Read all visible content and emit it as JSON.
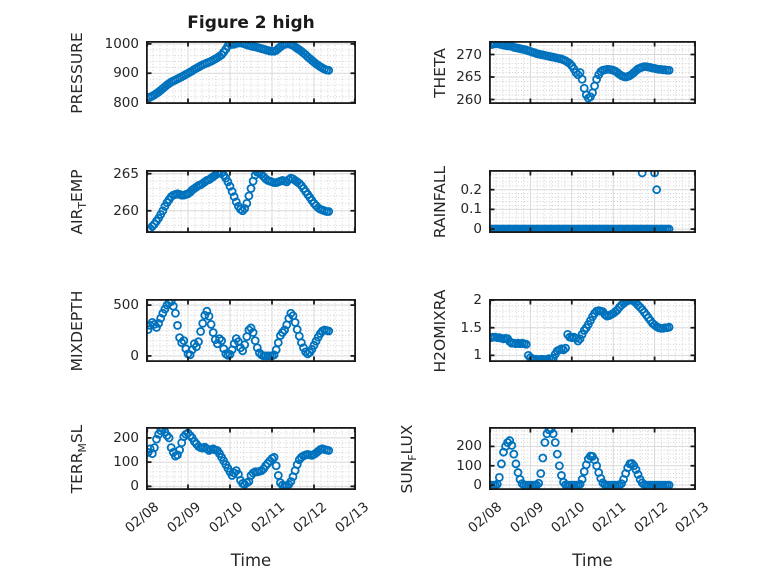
{
  "chart_data": {
    "type": "scatter",
    "title": "Figure 2 high",
    "xlabel": "Time",
    "x_tick_labels": [
      "02/08",
      "02/09",
      "02/10",
      "02/11",
      "02/12",
      "02/13"
    ],
    "xlim": [
      0,
      5
    ],
    "x_unit": "days since 02/08",
    "marker": "o",
    "marker_color": "#0072BD",
    "grid": "major solid + dotted minor",
    "subplots": [
      {
        "name": "PRESSURE",
        "slot": [
          0,
          0
        ],
        "ylabel_pre": "PRESSURE",
        "ylabel_sub": "",
        "ylabel_post": "",
        "ylim": [
          795,
          1010
        ],
        "yticks": [
          800,
          900,
          1000
        ],
        "ytick_labels": [
          "800",
          "900",
          "1000"
        ],
        "y_minor_step": 20,
        "t0": 0.05,
        "dt": 0.05,
        "values": [
          818,
          819,
          822,
          826,
          831,
          836,
          842,
          848,
          854,
          860,
          865,
          870,
          874,
          877,
          881,
          884,
          888,
          892,
          896,
          900,
          904,
          908,
          913,
          917,
          921,
          925,
          929,
          932,
          935,
          938,
          941,
          945,
          949,
          953,
          958,
          963,
          972,
          982,
          993,
          1000,
          998,
          999,
          1002,
          1003,
          1004,
          1002,
          1000,
          997,
          995,
          993,
          991,
          990,
          988,
          986,
          984,
          982,
          980,
          978,
          976,
          975,
          975,
          978,
          984,
          990,
          995,
          999,
          1000,
          1000,
          998,
          995,
          990,
          985,
          980,
          975,
          969,
          963,
          956,
          950,
          944,
          938,
          932,
          927,
          922,
          918,
          914,
          911,
          910
        ]
      },
      {
        "name": "THETA",
        "slot": [
          0,
          1
        ],
        "ylabel_pre": "THETA",
        "ylabel_sub": "",
        "ylabel_post": "",
        "ylim": [
          259,
          273
        ],
        "yticks": [
          260,
          265,
          270
        ],
        "ytick_labels": [
          "260",
          "265",
          "270"
        ],
        "y_minor_step": 1,
        "t0": 0.05,
        "dt": 0.05,
        "values": [
          272.2,
          272.3,
          272.4,
          272.4,
          272.3,
          272.2,
          272.1,
          272.0,
          271.9,
          271.9,
          271.8,
          271.6,
          271.5,
          271.4,
          271.3,
          271.2,
          271.1,
          271.0,
          270.8,
          270.7,
          270.5,
          270.4,
          270.2,
          270.1,
          270.0,
          269.9,
          269.8,
          269.7,
          269.6,
          269.5,
          269.4,
          269.3,
          269.2,
          269.1,
          269.0,
          268.8,
          268.6,
          268.3,
          268.0,
          267.5,
          266.8,
          266.0,
          265.5,
          266.0,
          264.5,
          262.5,
          261.0,
          260.3,
          260.6,
          261.5,
          263.0,
          264.5,
          265.5,
          266.2,
          266.5,
          266.6,
          266.7,
          266.7,
          266.6,
          266.5,
          266.3,
          266.0,
          265.6,
          265.3,
          265.1,
          265.0,
          265.1,
          265.3,
          265.6,
          266.0,
          266.4,
          266.8,
          267.0,
          267.2,
          267.3,
          267.3,
          267.2,
          267.1,
          267.0,
          266.9,
          266.8,
          266.7,
          266.7,
          266.6,
          266.6,
          266.5,
          266.5
        ]
      },
      {
        "name": "AIR_TEMP",
        "slot": [
          1,
          0
        ],
        "ylabel_pre": "AIR",
        "ylabel_sub": "T",
        "ylabel_post": "EMP",
        "ylim": [
          257,
          265.5
        ],
        "yticks": [
          260,
          265
        ],
        "ytick_labels": [
          "260",
          "265"
        ],
        "y_minor_step": 1,
        "t0": 0.05,
        "dt": 0.05,
        "values": [
          257.4,
          257.6,
          257.9,
          258.2,
          258.6,
          259.0,
          259.5,
          260.0,
          260.6,
          261.1,
          261.5,
          261.9,
          262.1,
          262.2,
          262.3,
          262.2,
          262.1,
          262.1,
          262.2,
          262.3,
          262.5,
          262.8,
          263.0,
          263.2,
          263.4,
          263.5,
          263.7,
          263.9,
          264.1,
          264.2,
          264.4,
          264.6,
          264.8,
          265.0,
          265.2,
          265.1,
          264.8,
          264.4,
          263.9,
          263.3,
          262.6,
          261.9,
          261.2,
          260.6,
          260.2,
          260.0,
          260.3,
          261.0,
          262.0,
          263.0,
          264.0,
          264.8,
          265.2,
          265.1,
          264.9,
          264.6,
          264.3,
          264.1,
          264.0,
          263.9,
          263.8,
          263.8,
          263.9,
          264.0,
          264.1,
          264.0,
          263.9,
          264.2,
          264.4,
          264.3,
          264.1,
          263.9,
          263.7,
          263.4,
          263.0,
          262.6,
          262.2,
          261.8,
          261.4,
          261.0,
          260.7,
          260.4,
          260.2,
          260.1,
          260.0,
          259.9,
          259.9
        ]
      },
      {
        "name": "RAINFALL",
        "slot": [
          1,
          1
        ],
        "ylabel_pre": "RAINFALL",
        "ylabel_sub": "",
        "ylabel_post": "",
        "ylim": [
          -0.02,
          0.3
        ],
        "yticks": [
          0,
          0.1,
          0.2
        ],
        "ytick_labels": [
          "0",
          "0.1",
          "0.2"
        ],
        "y_minor_step": 0.02,
        "t0": 0.05,
        "dt": 0.05,
        "values": [
          0,
          0,
          0,
          0,
          0,
          0,
          0,
          0,
          0,
          0,
          0,
          0,
          0,
          0,
          0,
          0,
          0,
          0,
          0,
          0,
          0,
          0,
          0,
          0,
          0,
          0,
          0,
          0,
          0,
          0,
          0,
          0,
          0,
          0,
          0,
          0,
          0,
          0,
          0,
          0,
          0,
          0,
          0,
          0,
          0,
          0,
          0,
          0,
          0,
          0,
          0,
          0,
          0,
          0,
          0,
          0,
          0,
          0,
          0,
          0,
          0,
          0,
          0,
          0,
          0,
          0,
          0,
          0,
          0,
          0,
          0,
          0,
          0,
          0,
          0,
          0,
          0,
          0,
          0,
          0,
          0,
          0,
          0,
          0,
          0,
          0,
          0
        ],
        "extra_points": [
          [
            3.7,
            0.285
          ],
          [
            4.0,
            0.285
          ],
          [
            4.05,
            0.2
          ]
        ]
      },
      {
        "name": "MIXDEPTH",
        "slot": [
          2,
          0
        ],
        "ylabel_pre": "MIXDEPTH",
        "ylabel_sub": "",
        "ylabel_post": "",
        "ylim": [
          -60,
          560
        ],
        "yticks": [
          0,
          500
        ],
        "ytick_labels": [
          "0",
          "500"
        ],
        "y_minor_step": 50,
        "t0": 0.05,
        "dt": 0.05,
        "values": [
          260,
          300,
          330,
          310,
          280,
          320,
          370,
          420,
          460,
          500,
          525,
          535,
          490,
          420,
          300,
          180,
          130,
          150,
          70,
          20,
          10,
          60,
          120,
          90,
          140,
          240,
          320,
          400,
          440,
          390,
          310,
          230,
          160,
          120,
          170,
          150,
          70,
          20,
          5,
          15,
          60,
          120,
          170,
          140,
          80,
          50,
          110,
          190,
          255,
          275,
          230,
          150,
          80,
          30,
          10,
          0,
          0,
          0,
          0,
          0,
          10,
          60,
          130,
          200,
          230,
          255,
          305,
          370,
          420,
          395,
          330,
          260,
          195,
          130,
          80,
          40,
          20,
          35,
          65,
          105,
          145,
          185,
          220,
          245,
          255,
          250,
          245
        ]
      },
      {
        "name": "H2OMIXRA",
        "slot": [
          2,
          1
        ],
        "ylabel_pre": "H2OMIXRA",
        "ylabel_sub": "",
        "ylabel_post": "",
        "ylim": [
          0.88,
          2.02
        ],
        "yticks": [
          1,
          1.5,
          2
        ],
        "ytick_labels": [
          "1",
          "1.5",
          "2"
        ],
        "y_minor_step": 0.1,
        "t0": 0.05,
        "dt": 0.05,
        "values": [
          1.32,
          1.33,
          1.33,
          1.32,
          1.32,
          1.31,
          1.3,
          1.31,
          1.3,
          1.25,
          1.22,
          1.22,
          1.21,
          1.22,
          1.21,
          1.22,
          1.21,
          1.2,
          1.0,
          0.96,
          0.94,
          0.93,
          0.93,
          0.92,
          0.93,
          0.93,
          0.92,
          0.93,
          0.94,
          0.93,
          0.95,
          1.02,
          1.08,
          1.1,
          1.12,
          1.1,
          1.13,
          1.38,
          1.33,
          1.32,
          1.33,
          1.31,
          1.26,
          1.3,
          1.38,
          1.45,
          1.5,
          1.56,
          1.63,
          1.7,
          1.76,
          1.8,
          1.81,
          1.8,
          1.79,
          1.74,
          1.71,
          1.72,
          1.74,
          1.76,
          1.79,
          1.82,
          1.87,
          1.91,
          1.94,
          1.97,
          1.99,
          2.0,
          2.0,
          1.98,
          1.95,
          1.91,
          1.87,
          1.83,
          1.78,
          1.73,
          1.68,
          1.63,
          1.58,
          1.55,
          1.52,
          1.5,
          1.49,
          1.49,
          1.5,
          1.5,
          1.51
        ]
      },
      {
        "name": "TERR_MSL",
        "slot": [
          3,
          0
        ],
        "ylabel_pre": "TERR",
        "ylabel_sub": "M",
        "ylabel_post": "SL",
        "ylim": [
          -15,
          245
        ],
        "yticks": [
          0,
          100,
          200
        ],
        "ytick_labels": [
          "0",
          "100",
          "200"
        ],
        "y_minor_step": 20,
        "t0": 0.05,
        "dt": 0.05,
        "values": [
          140,
          155,
          135,
          160,
          195,
          215,
          230,
          240,
          225,
          210,
          200,
          160,
          140,
          125,
          130,
          150,
          180,
          205,
          215,
          220,
          210,
          200,
          185,
          175,
          165,
          160,
          158,
          162,
          155,
          148,
          152,
          155,
          150,
          148,
          135,
          120,
          105,
          90,
          75,
          60,
          45,
          55,
          65,
          50,
          25,
          12,
          8,
          15,
          20,
          45,
          55,
          60,
          60,
          62,
          65,
          72,
          85,
          95,
          105,
          115,
          120,
          85,
          45,
          15,
          5,
          2,
          3,
          8,
          20,
          40,
          65,
          90,
          110,
          120,
          126,
          130,
          132,
          130,
          128,
          132,
          138,
          145,
          152,
          155,
          152,
          150,
          148
        ]
      },
      {
        "name": "SUN_FLUX",
        "slot": [
          3,
          1
        ],
        "ylabel_pre": "SUN",
        "ylabel_sub": "F",
        "ylabel_post": "LUX",
        "ylim": [
          -25,
          300
        ],
        "yticks": [
          0,
          100,
          200
        ],
        "ytick_labels": [
          "0",
          "100",
          "200"
        ],
        "y_minor_step": 20,
        "t0": 0.05,
        "dt": 0.05,
        "values": [
          0,
          0,
          0,
          5,
          40,
          110,
          170,
          200,
          220,
          230,
          205,
          160,
          110,
          65,
          30,
          8,
          0,
          0,
          0,
          0,
          0,
          0,
          0,
          10,
          60,
          140,
          220,
          265,
          285,
          290,
          265,
          220,
          160,
          100,
          50,
          15,
          2,
          0,
          0,
          0,
          0,
          0,
          0,
          5,
          30,
          70,
          105,
          135,
          150,
          148,
          130,
          100,
          65,
          35,
          12,
          2,
          0,
          0,
          0,
          0,
          0,
          0,
          0,
          8,
          30,
          60,
          90,
          110,
          112,
          100,
          80,
          55,
          30,
          12,
          3,
          0,
          0,
          0,
          0,
          0,
          0,
          0,
          0,
          0,
          0,
          0,
          0
        ]
      }
    ],
    "style": {
      "marker_color": "#0072BD",
      "axis_color": "#1a1a1a",
      "text_color": "#262626",
      "grid_major_color": "#d9d9d9",
      "grid_minor_color": "#cccccc",
      "background": "#ffffff"
    }
  }
}
